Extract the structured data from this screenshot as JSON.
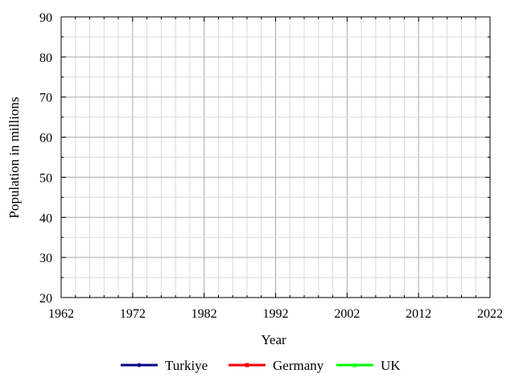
{
  "chart_data": {
    "type": "line",
    "title": "",
    "xlabel": "Year",
    "ylabel": "Population in millions",
    "xlim": [
      1962,
      2022
    ],
    "ylim": [
      20,
      90
    ],
    "x_ticks": [
      "1962",
      "1972",
      "1982",
      "1992",
      "2002",
      "2012",
      "2022"
    ],
    "y_ticks": [
      "20",
      "30",
      "40",
      "50",
      "60",
      "70",
      "80",
      "90"
    ],
    "grid": true,
    "legend_position": "bottom",
    "series": [
      {
        "name": "Turkiye",
        "color": "#000080",
        "marker": "circle",
        "x": [],
        "y": []
      },
      {
        "name": "Germany",
        "color": "#ff0000",
        "marker": "square",
        "x": [],
        "y": []
      },
      {
        "name": "UK",
        "color": "#00ff00",
        "marker": "triangle",
        "x": [],
        "y": []
      }
    ]
  }
}
